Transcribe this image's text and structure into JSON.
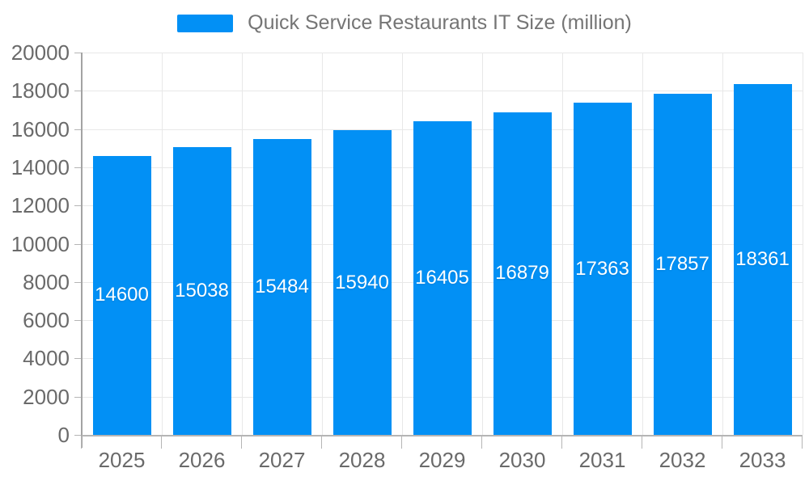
{
  "chart_data": {
    "type": "bar",
    "title": "Quick Service Restaurants IT Size (million)",
    "legend": {
      "position": "top",
      "label": "Quick Service Restaurants IT Size (million)"
    },
    "categories": [
      "2025",
      "2026",
      "2027",
      "2028",
      "2029",
      "2030",
      "2031",
      "2032",
      "2033"
    ],
    "series": [
      {
        "name": "Quick Service Restaurants IT Size (million)",
        "values": [
          14600,
          15038,
          15484,
          15940,
          16405,
          16879,
          17363,
          17857,
          18361
        ]
      }
    ],
    "xlabel": "",
    "ylabel": "",
    "ylim": [
      0,
      20000
    ],
    "ytick_step": 2000,
    "grid": true,
    "bar_color": "#0290F5",
    "data_label_color": "#FFFFFF",
    "axis_label_color": "#6A6A6A",
    "legend_text_color": "#757575",
    "grid_color": "#E8E8E8"
  }
}
